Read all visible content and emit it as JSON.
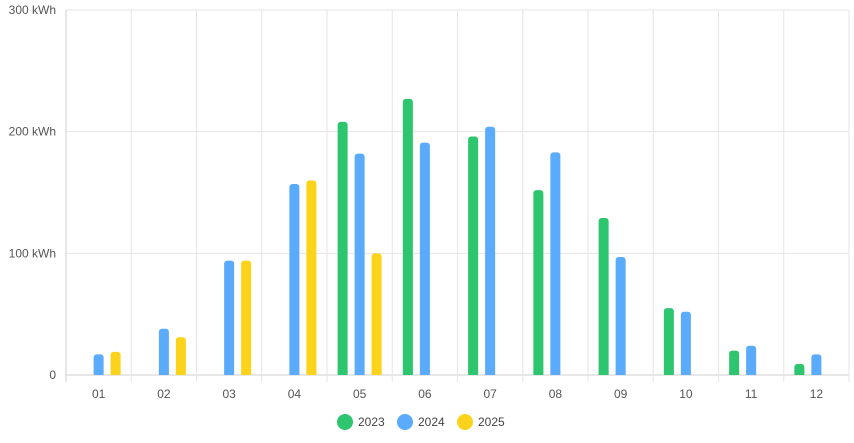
{
  "chart_data": {
    "type": "bar",
    "categories": [
      "01",
      "02",
      "03",
      "04",
      "05",
      "06",
      "07",
      "08",
      "09",
      "10",
      "11",
      "12"
    ],
    "series": [
      {
        "name": "2023",
        "color": "#2ec56f",
        "values": [
          null,
          null,
          null,
          null,
          208,
          227,
          196,
          152,
          129,
          55,
          20,
          9
        ]
      },
      {
        "name": "2024",
        "color": "#5aabfb",
        "values": [
          17,
          38,
          94,
          157,
          182,
          191,
          204,
          183,
          97,
          52,
          24,
          17
        ]
      },
      {
        "name": "2025",
        "color": "#fbd31b",
        "values": [
          19,
          31,
          94,
          160,
          100,
          null,
          null,
          null,
          null,
          null,
          null,
          null
        ]
      }
    ],
    "yticks": [
      "0",
      "100 kWh",
      "200 kWh",
      "300 kWh"
    ],
    "ylim": [
      0,
      300
    ],
    "grid": true,
    "legend": "bottom"
  }
}
